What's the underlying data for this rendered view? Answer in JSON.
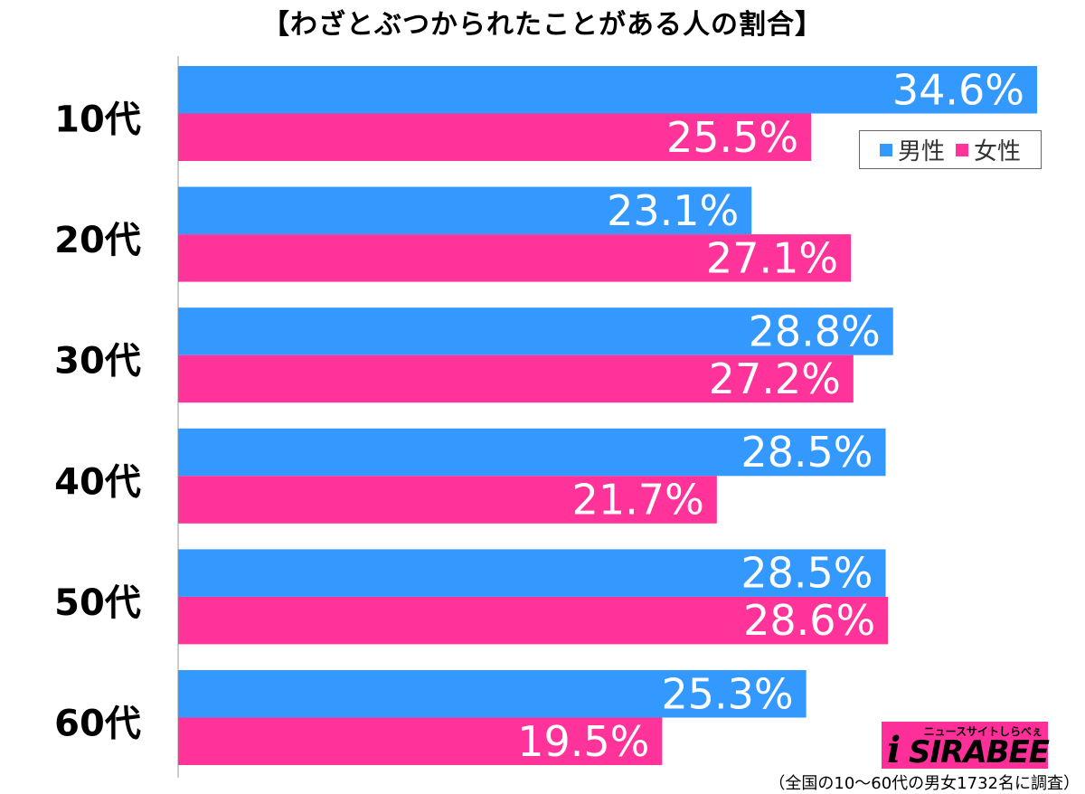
{
  "title": "【わざとぶつかられたことがある人の割合】",
  "legend": {
    "male_label": "男性",
    "female_label": "女性"
  },
  "colors": {
    "male": "#3399ff",
    "female": "#ff3399"
  },
  "footnote": "（全国の10〜60代の男女1732名に調査）",
  "logo": {
    "main": "SIRABEE",
    "sub": "ニュースサイトしらべぇ"
  },
  "chart_data": {
    "type": "bar",
    "orientation": "horizontal",
    "title": "【わざとぶつかられたことがある人の割合】",
    "categories": [
      "10代",
      "20代",
      "30代",
      "40代",
      "50代",
      "60代"
    ],
    "series": [
      {
        "name": "男性",
        "values": [
          34.6,
          23.1,
          28.8,
          28.5,
          28.5,
          25.3
        ]
      },
      {
        "name": "女性",
        "values": [
          25.5,
          27.1,
          27.2,
          21.7,
          28.6,
          19.5
        ]
      }
    ],
    "value_labels": {
      "男性": [
        "34.6%",
        "23.1%",
        "28.8%",
        "28.5%",
        "28.5%",
        "25.3%"
      ],
      "女性": [
        "25.5%",
        "27.1%",
        "27.2%",
        "21.7%",
        "28.6%",
        "19.5%"
      ]
    },
    "xlim": [
      0,
      35
    ],
    "grid": false,
    "legend_position": "top-right"
  }
}
